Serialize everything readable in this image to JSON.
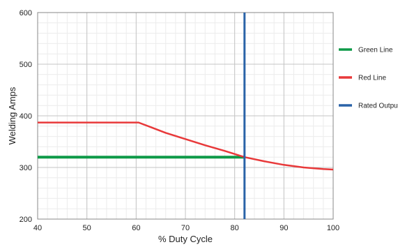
{
  "chart_data": {
    "type": "line",
    "xlabel": "% Duty Cycle",
    "ylabel": "Welding Amps",
    "xlim": [
      40,
      100
    ],
    "ylim": [
      200,
      600
    ],
    "x_major_ticks": [
      40,
      50,
      60,
      70,
      80,
      90,
      100
    ],
    "y_major_ticks": [
      200,
      300,
      400,
      500,
      600
    ],
    "x_minor_step": 2,
    "y_minor_step": 20,
    "grid": true,
    "legend_position": "right",
    "series": [
      {
        "name": "Green Line",
        "color": "#0e9a48",
        "x": [
          40,
          82
        ],
        "y": [
          320,
          320
        ]
      },
      {
        "name": "Red Line",
        "color": "#e8393a",
        "x": [
          40,
          60.5,
          63,
          66,
          70,
          74,
          78,
          82,
          86,
          90,
          94,
          98,
          100
        ],
        "y": [
          387,
          387,
          378,
          367,
          355,
          343,
          332,
          320,
          312,
          305,
          300,
          297,
          296
        ]
      },
      {
        "name": "Rated Output",
        "color": "#2a63a8",
        "x": [
          82,
          82
        ],
        "y": [
          200,
          600
        ]
      }
    ]
  }
}
